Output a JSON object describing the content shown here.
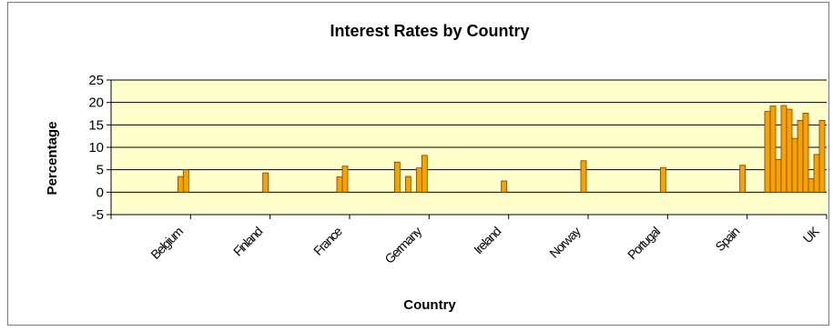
{
  "chart_data": {
    "type": "bar",
    "title": "Interest Rates by Country",
    "xlabel": "Country",
    "ylabel": "Percentage",
    "ylim": [
      -5,
      25
    ],
    "yticks": [
      -5,
      0,
      5,
      10,
      15,
      20,
      25
    ],
    "grid": true,
    "legend": "none",
    "colors": {
      "bar": "#f5a300",
      "bar_edge": "#7a3b00",
      "plot_bg": "#ffffcc",
      "grid": "#000000"
    },
    "categories": [
      "Belgium",
      "Finland",
      "France",
      "Germany",
      "Ireland",
      "Norway",
      "Portugal",
      "Spain",
      "UK"
    ],
    "values": [
      [
        3.5,
        5
      ],
      [
        4.3
      ],
      [
        3.4,
        5.8
      ],
      [
        6.7,
        0,
        3.5,
        0,
        5.4,
        8.2
      ],
      [
        2.5
      ],
      [
        7
      ],
      [
        5.5
      ],
      [
        6
      ],
      [
        18,
        19.2,
        7.3,
        19.3,
        18.5,
        12,
        16,
        17.6,
        3,
        8.4,
        16
      ]
    ]
  }
}
